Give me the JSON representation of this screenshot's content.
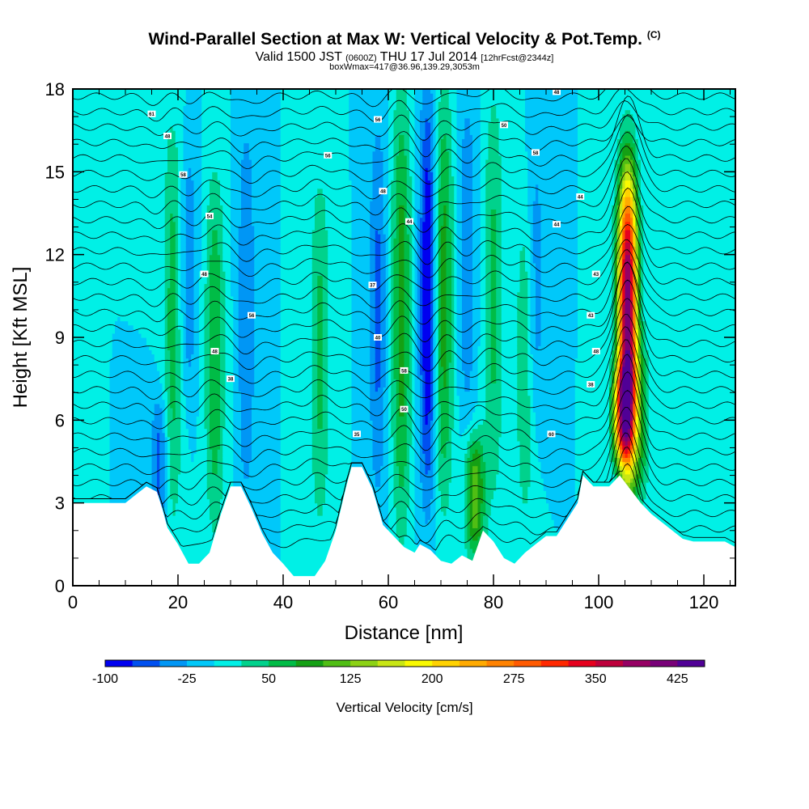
{
  "title": {
    "main": "Wind-Parallel Section at Max W: Vertical Velocity & Pot.Temp.",
    "mark": "(C)",
    "valid_prefix": "Valid 1500 JST",
    "valid_utc": "(0600Z)",
    "valid_date": "THU 17 Jul 2014",
    "forecast": "[12hrFcst@2344z]",
    "box": "boxWmax=417@36.96,139.29,3053m"
  },
  "chart_data": {
    "type": "heatmap",
    "xlabel": "Distance [nm]",
    "ylabel": "Height [Kft MSL]",
    "xlim": [
      0,
      126
    ],
    "ylim": [
      0,
      18
    ],
    "xticks": [
      "0",
      "20",
      "40",
      "60",
      "80",
      "100",
      "120"
    ],
    "yticks": [
      "0",
      "3",
      "6",
      "9",
      "12",
      "15",
      "18"
    ],
    "colorbar": {
      "title": "Vertical Velocity [cm/s]",
      "min": -100,
      "max": 450,
      "step": 25,
      "labels": [
        "-100",
        "-25",
        "50",
        "125",
        "200",
        "275",
        "350",
        "425"
      ],
      "colors": [
        "#0000f0",
        "#0050f0",
        "#0096f5",
        "#00c8fa",
        "#00f0e6",
        "#00d28c",
        "#00bc46",
        "#14a014",
        "#50be14",
        "#8cd214",
        "#c8e614",
        "#fafa00",
        "#ffd200",
        "#ffaa00",
        "#ff8200",
        "#ff5a00",
        "#ff2800",
        "#e6001e",
        "#be003c",
        "#960064",
        "#780078",
        "#500096"
      ]
    },
    "updrafts": [
      {
        "x": 105.5,
        "y_base": 4,
        "y_top": 15,
        "w_max": 417
      },
      {
        "x": 104.5,
        "y_base": 4.5,
        "y_top": 8,
        "w_max": 200
      },
      {
        "x": 76.5,
        "y_base": 1,
        "y_top": 5.5,
        "w_max": 115
      },
      {
        "x": 62.5,
        "y_base": 2,
        "y_top": 18,
        "w_max": 85
      },
      {
        "x": 70.5,
        "y_base": 3,
        "y_top": 18,
        "w_max": 85
      },
      {
        "x": 19,
        "y_base": 2,
        "y_top": 17,
        "w_max": 60
      },
      {
        "x": 27,
        "y_base": 2,
        "y_top": 15,
        "w_max": 70
      },
      {
        "x": 47,
        "y_base": 2,
        "y_top": 15,
        "w_max": 55
      },
      {
        "x": 80,
        "y_base": 3,
        "y_top": 18,
        "w_max": 55
      },
      {
        "x": 86,
        "y_base": 2,
        "y_top": 14,
        "w_max": 45
      },
      {
        "x": 108,
        "y_base": 3,
        "y_top": 9,
        "w_max": 60
      }
    ],
    "downdrafts": [
      {
        "x": 67.5,
        "y_base": 3,
        "y_top": 18,
        "w_min": -100
      },
      {
        "x": 16.5,
        "y_base": 2,
        "y_top": 7,
        "w_min": -60
      },
      {
        "x": 22,
        "y_base": 7,
        "y_top": 16,
        "w_min": -45
      },
      {
        "x": 33,
        "y_base": 3,
        "y_top": 17,
        "w_min": -50
      },
      {
        "x": 58,
        "y_base": 3,
        "y_top": 17,
        "w_min": -55
      },
      {
        "x": 75,
        "y_base": 6,
        "y_top": 18,
        "w_min": -45
      },
      {
        "x": 88,
        "y_base": 6,
        "y_top": 16,
        "w_min": -40
      }
    ],
    "terrain": [
      [
        0,
        3
      ],
      [
        10,
        3
      ],
      [
        12,
        3.3
      ],
      [
        14,
        3.6
      ],
      [
        16,
        3.4
      ],
      [
        17,
        2.8
      ],
      [
        18,
        2.1
      ],
      [
        20,
        1.5
      ],
      [
        22,
        0.8
      ],
      [
        24,
        0.8
      ],
      [
        26,
        1.2
      ],
      [
        28,
        2.5
      ],
      [
        30,
        3.6
      ],
      [
        32,
        3.6
      ],
      [
        34,
        2.8
      ],
      [
        36,
        1.9
      ],
      [
        38,
        1.2
      ],
      [
        40,
        0.8
      ],
      [
        42,
        0.35
      ],
      [
        46,
        0.35
      ],
      [
        48,
        0.9
      ],
      [
        50,
        2
      ],
      [
        52,
        3.6
      ],
      [
        53,
        4.3
      ],
      [
        55,
        4.3
      ],
      [
        57,
        3.5
      ],
      [
        59,
        2.2
      ],
      [
        61,
        1.8
      ],
      [
        63,
        1.4
      ],
      [
        65,
        1.2
      ],
      [
        66,
        1.5
      ],
      [
        68,
        1.3
      ],
      [
        70,
        0.9
      ],
      [
        72,
        0.8
      ],
      [
        74,
        1.1
      ],
      [
        76,
        0.9
      ],
      [
        78,
        2
      ],
      [
        80,
        1.6
      ],
      [
        82,
        1
      ],
      [
        84,
        0.8
      ],
      [
        86,
        1.2
      ],
      [
        88,
        1.5
      ],
      [
        90,
        1.8
      ],
      [
        92,
        1.8
      ],
      [
        94,
        2.4
      ],
      [
        96,
        3
      ],
      [
        97,
        4
      ],
      [
        99,
        3.6
      ],
      [
        102,
        3.6
      ],
      [
        104,
        4
      ],
      [
        106,
        3.5
      ],
      [
        108,
        3
      ],
      [
        110,
        2.6
      ],
      [
        112,
        2.3
      ],
      [
        114,
        2
      ],
      [
        116,
        1.7
      ],
      [
        118,
        1.6
      ],
      [
        124,
        1.6
      ],
      [
        126,
        1.4
      ]
    ],
    "theta_labels": [
      {
        "x": 15,
        "y": 17.1,
        "text": "61"
      },
      {
        "x": 18,
        "y": 16.3,
        "text": "48"
      },
      {
        "x": 21,
        "y": 14.9,
        "text": "58"
      },
      {
        "x": 26,
        "y": 13.4,
        "text": "54"
      },
      {
        "x": 25,
        "y": 11.3,
        "text": "48"
      },
      {
        "x": 34,
        "y": 9.8,
        "text": "56"
      },
      {
        "x": 27,
        "y": 8.5,
        "text": "48"
      },
      {
        "x": 30,
        "y": 7.5,
        "text": "38"
      },
      {
        "x": 48.5,
        "y": 15.6,
        "text": "56"
      },
      {
        "x": 58,
        "y": 16.9,
        "text": "56"
      },
      {
        "x": 59,
        "y": 14.3,
        "text": "48"
      },
      {
        "x": 64,
        "y": 13.2,
        "text": "44"
      },
      {
        "x": 57,
        "y": 10.9,
        "text": "37"
      },
      {
        "x": 58,
        "y": 9,
        "text": "40"
      },
      {
        "x": 63,
        "y": 7.8,
        "text": "58"
      },
      {
        "x": 63,
        "y": 6.4,
        "text": "50"
      },
      {
        "x": 54,
        "y": 5.5,
        "text": "35"
      },
      {
        "x": 92,
        "y": 17.9,
        "text": "48"
      },
      {
        "x": 82,
        "y": 16.7,
        "text": "50"
      },
      {
        "x": 88,
        "y": 15.7,
        "text": "58"
      },
      {
        "x": 96.5,
        "y": 14.1,
        "text": "44"
      },
      {
        "x": 92,
        "y": 13.1,
        "text": "44"
      },
      {
        "x": 99.5,
        "y": 11.3,
        "text": "43"
      },
      {
        "x": 98.5,
        "y": 9.8,
        "text": "43"
      },
      {
        "x": 99.5,
        "y": 8.5,
        "text": "48"
      },
      {
        "x": 98.5,
        "y": 7.3,
        "text": "38"
      },
      {
        "x": 91,
        "y": 5.5,
        "text": "60"
      }
    ]
  }
}
